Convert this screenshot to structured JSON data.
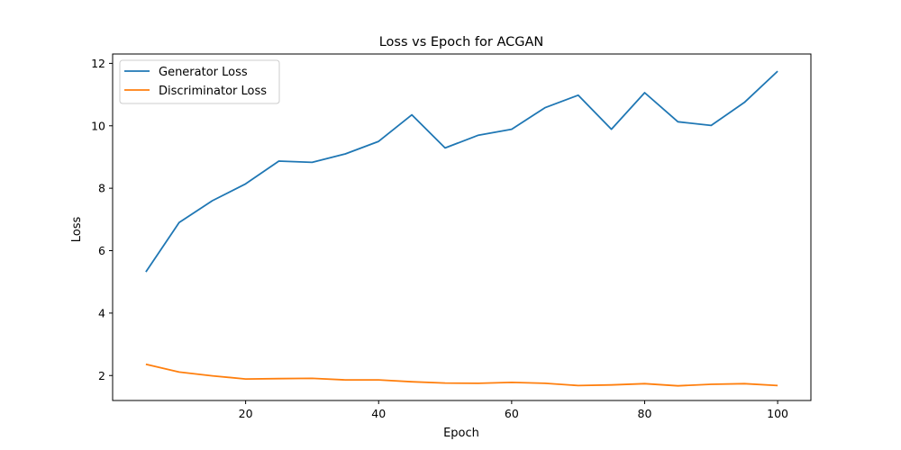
{
  "chart_data": {
    "type": "line",
    "title": "Loss vs Epoch for ACGAN",
    "xlabel": "Epoch",
    "ylabel": "Loss",
    "xlim": [
      0,
      105
    ],
    "ylim": [
      1.2,
      12.3
    ],
    "xticks": [
      20,
      40,
      60,
      80,
      100
    ],
    "yticks": [
      2,
      4,
      6,
      8,
      10,
      12
    ],
    "grid": false,
    "legend_position": "top-left",
    "x": [
      5,
      10,
      15,
      20,
      25,
      30,
      35,
      40,
      45,
      50,
      55,
      60,
      65,
      70,
      75,
      80,
      85,
      90,
      95,
      100
    ],
    "series": [
      {
        "name": "Generator Loss",
        "color": "#1f77b4",
        "values": [
          5.32,
          6.9,
          7.6,
          8.14,
          8.87,
          8.83,
          9.1,
          9.5,
          10.35,
          9.29,
          9.7,
          9.89,
          10.58,
          10.98,
          9.89,
          11.06,
          10.13,
          10.01,
          10.75,
          11.75
        ]
      },
      {
        "name": "Discriminator Loss",
        "color": "#ff7f0e",
        "values": [
          2.36,
          2.11,
          1.99,
          1.89,
          1.9,
          1.91,
          1.86,
          1.86,
          1.8,
          1.76,
          1.75,
          1.78,
          1.75,
          1.68,
          1.7,
          1.74,
          1.67,
          1.72,
          1.74,
          1.68
        ]
      }
    ]
  }
}
